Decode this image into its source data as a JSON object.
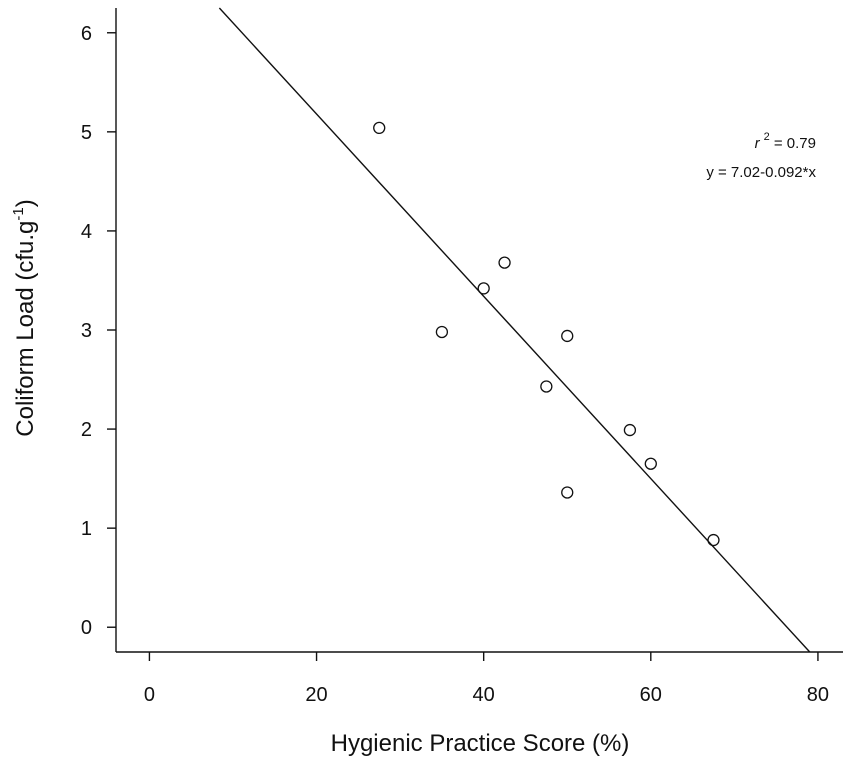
{
  "chart_data": {
    "type": "scatter",
    "title": "",
    "xlabel": "Hygienic Practice Score (%)",
    "ylabel_main": "Coliform Load (cfu.g",
    "ylabel_sup": "-1",
    "ylabel_close": ")",
    "xlim": [
      -4,
      83
    ],
    "ylim": [
      -0.25,
      6.25
    ],
    "x_ticks": [
      0,
      20,
      40,
      60,
      80
    ],
    "y_ticks": [
      0,
      1,
      2,
      3,
      4,
      5,
      6
    ],
    "x_tick_labels": [
      "0",
      "20",
      "40",
      "60",
      "80"
    ],
    "y_tick_labels": [
      "0",
      "1",
      "2",
      "3",
      "4",
      "5",
      "6"
    ],
    "points": [
      {
        "x": 27.5,
        "y": 5.04
      },
      {
        "x": 35.0,
        "y": 2.98
      },
      {
        "x": 40.0,
        "y": 3.42
      },
      {
        "x": 42.5,
        "y": 3.68
      },
      {
        "x": 47.5,
        "y": 2.43
      },
      {
        "x": 50.0,
        "y": 2.94
      },
      {
        "x": 50.0,
        "y": 1.36
      },
      {
        "x": 57.5,
        "y": 1.99
      },
      {
        "x": 60.0,
        "y": 1.65
      },
      {
        "x": 67.5,
        "y": 0.88
      }
    ],
    "fit": {
      "intercept": 7.02,
      "slope": -0.092
    },
    "annotation": {
      "r2_prefix": "r",
      "r2_sup": "2",
      "r2_rest": " = 0.79",
      "equation": "y = 7.02-0.092*x"
    },
    "grid": false,
    "legend": "none"
  }
}
